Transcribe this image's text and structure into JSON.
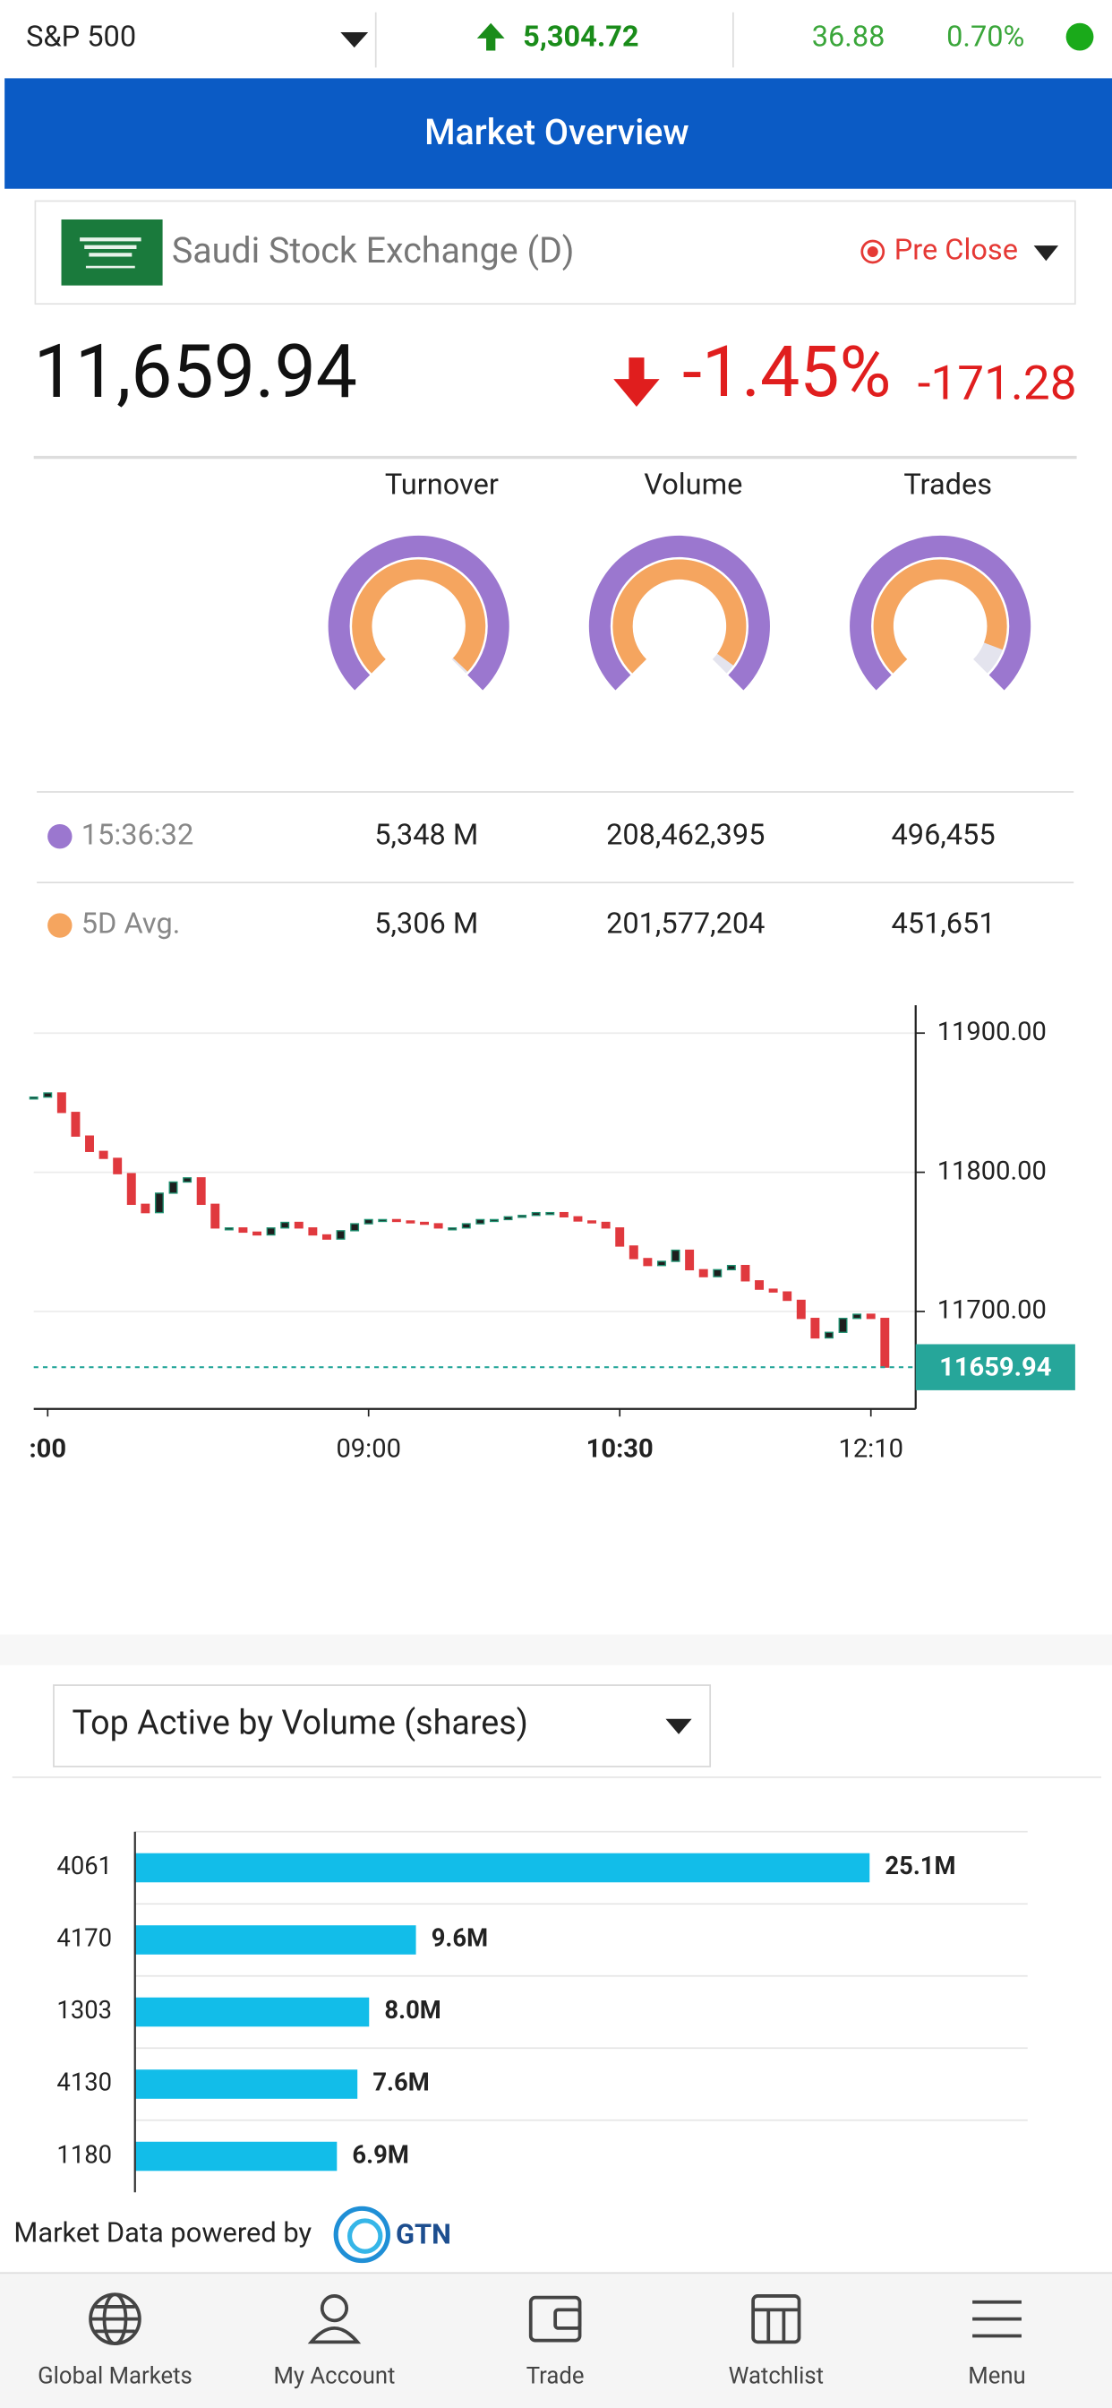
{
  "top_bar": {
    "index_name": "S&P 500",
    "price": "5,304.72",
    "change": "36.88",
    "change_pct": "0.70%"
  },
  "header": {
    "title": "Market Overview"
  },
  "exchange": {
    "name": "Saudi Stock Exchange (D)",
    "status": "Pre Close"
  },
  "summary": {
    "price": "11,659.94",
    "change_pct": "-1.45%",
    "change": "-171.28"
  },
  "stats": {
    "columns": [
      "Turnover",
      "Volume",
      "Trades"
    ],
    "rows": [
      {
        "label": "15:36:32",
        "color": "#9b77cf",
        "values": [
          5348,
          208462395,
          496455
        ],
        "value_labels": [
          "5,348 M",
          "208,462,395",
          "496,455"
        ]
      },
      {
        "label": "5D Avg.",
        "color": "#f5a55f",
        "values": [
          5306,
          201577204,
          451651
        ],
        "value_labels": [
          "5,306 M",
          "201,577,204",
          "451,651"
        ]
      }
    ]
  },
  "intraday": {
    "type": "candlestick",
    "up_color": "#1f8f6f",
    "down_color": "#e0393e",
    "values": [
      11854,
      11857,
      11843,
      11826,
      11815,
      11810,
      11799,
      11777,
      11771,
      11785,
      11793,
      11796,
      11777,
      11760,
      11760,
      11757,
      11755,
      11760,
      11764,
      11760,
      11755,
      11752,
      11758,
      11763,
      11766,
      11766,
      11765,
      11764,
      11763,
      11760,
      11760,
      11763,
      11766,
      11766,
      11768,
      11769,
      11771,
      11771,
      11768,
      11765,
      11764,
      11760,
      11747,
      11738,
      11733,
      11736,
      11744,
      11730,
      11725,
      11730,
      11733,
      11722,
      11716,
      11714,
      11708,
      11695,
      11681,
      11685,
      11695,
      11698,
      11695,
      11660
    ],
    "xlim": [
      -1,
      62
    ],
    "xticks": [
      {
        "value": 1,
        "label": ":00"
      },
      {
        "value": 24,
        "label": "09:00"
      },
      {
        "value": 42,
        "label": "10:30"
      },
      {
        "value": 60,
        "label": "12:10"
      }
    ],
    "ylim": [
      11630,
      11920
    ],
    "yticks": [
      {
        "value": 11700,
        "label": "11700.00"
      },
      {
        "value": 11800,
        "label": "11800.00"
      },
      {
        "value": 11900,
        "label": "11900.00"
      }
    ],
    "current": {
      "value": 11659.94,
      "label": "11659.94"
    },
    "current_color": "#26a69a",
    "grid": true
  },
  "top_active": {
    "title": "Top Active by Volume (shares)",
    "chart": {
      "type": "bar",
      "orientation": "horizontal",
      "categories": [
        "4061",
        "4170",
        "1303",
        "4130",
        "1180"
      ],
      "values": [
        25.1,
        9.6,
        8.0,
        7.6,
        6.9
      ],
      "value_labels": [
        "25.1M",
        "9.6M",
        "8.0M",
        "7.6M",
        "6.9M"
      ],
      "color": "#12bde9",
      "xlim": [
        0,
        30.5
      ],
      "grid": true
    }
  },
  "footer": {
    "text": "Market Data powered by",
    "brand": "GTN"
  },
  "nav": [
    "Global Markets",
    "My Account",
    "Trade",
    "Watchlist",
    "Menu"
  ]
}
